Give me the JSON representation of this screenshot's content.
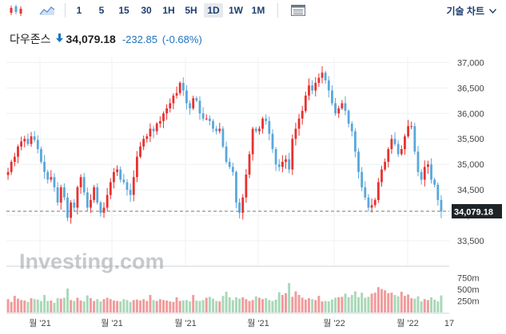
{
  "toolbar": {
    "candle_icon": "candlestick-icon",
    "area_icon": "area-chart-icon",
    "timeframes": [
      "1",
      "5",
      "15",
      "30",
      "1H",
      "5H",
      "1D",
      "1W",
      "1M"
    ],
    "active": "1D",
    "table_icon": "table-icon",
    "technical_label": "기술 차트",
    "technical_icon": "chevron-down-icon"
  },
  "header": {
    "name": "다우존스",
    "price": "34,079.18",
    "change": "-232.85",
    "change_pct": "(-0.68%)"
  },
  "colors": {
    "up": "#e8312f",
    "down": "#5aa7dc",
    "vol_up": "#f19b9b",
    "vol_down": "#a9d8b8",
    "accent": "#1e73be"
  },
  "chart_data": {
    "type": "candlestick",
    "y_ticks": [
      "37,000",
      "36,500",
      "36,000",
      "35,500",
      "35,000",
      "34,500",
      "34,000",
      "33,500"
    ],
    "ylim": [
      33000,
      37100
    ],
    "last_price": 34079.18,
    "last_price_label": "34,079.18",
    "x_labels": [
      "월 '21",
      "월 '21",
      "월 '21",
      "월 '21",
      "월 '22",
      "월 '22",
      "17"
    ],
    "volume_ticks": [
      "750m",
      "500m",
      "250m"
    ],
    "watermark": "Investing.com",
    "closes": [
      34850,
      35050,
      35150,
      35350,
      35450,
      35500,
      35400,
      35550,
      35480,
      35300,
      35050,
      34850,
      34700,
      34750,
      34550,
      34250,
      34550,
      34350,
      33950,
      34250,
      34150,
      34550,
      34750,
      34450,
      34150,
      34300,
      34550,
      34250,
      34050,
      34150,
      34400,
      34650,
      34850,
      34900,
      34700,
      34650,
      34500,
      34400,
      34750,
      35150,
      35350,
      35500,
      35550,
      35700,
      35650,
      35800,
      35850,
      36000,
      36100,
      36200,
      36350,
      36400,
      36600,
      36450,
      36200,
      36100,
      36300,
      36250,
      36000,
      35900,
      35900,
      35850,
      35700,
      35650,
      35700,
      35350,
      35050,
      34950,
      34850,
      34250,
      34050,
      34350,
      34800,
      35200,
      35700,
      35650,
      35700,
      35900,
      35850,
      35600,
      35300,
      35000,
      34950,
      35050,
      35100,
      34900,
      35500,
      35700,
      35900,
      36050,
      36350,
      36550,
      36450,
      36600,
      36700,
      36800,
      36650,
      36450,
      36200,
      36000,
      36100,
      36200,
      36050,
      35800,
      35650,
      35250,
      34850,
      34550,
      34350,
      34150,
      34200,
      34300,
      34650,
      34900,
      35050,
      35300,
      35500,
      35400,
      35200,
      35300,
      35550,
      35750,
      35750,
      35250,
      34850,
      34700,
      34950,
      35000,
      34700,
      34600,
      34300,
      34079.18
    ],
    "volumes": [
      290,
      230,
      360,
      300,
      270,
      260,
      230,
      310,
      290,
      280,
      250,
      380,
      250,
      260,
      210,
      310,
      300,
      320,
      520,
      270,
      250,
      320,
      260,
      240,
      370,
      310,
      250,
      290,
      240,
      290,
      320,
      290,
      260,
      250,
      240,
      290,
      270,
      230,
      270,
      280,
      260,
      290,
      250,
      380,
      270,
      250,
      290,
      270,
      260,
      240,
      230,
      330,
      250,
      260,
      270,
      240,
      380,
      260,
      250,
      270,
      320,
      340,
      300,
      250,
      240,
      360,
      450,
      330,
      270,
      330,
      300,
      330,
      290,
      250,
      270,
      350,
      320,
      290,
      310,
      270,
      250,
      280,
      440,
      380,
      420,
      640,
      340,
      460,
      380,
      320,
      280,
      310,
      290,
      270,
      360,
      240,
      250,
      240,
      280,
      320,
      330,
      340,
      410,
      330,
      380,
      460,
      330,
      430,
      320,
      340,
      410,
      430,
      550,
      510,
      480,
      420,
      430,
      380,
      350,
      450,
      360,
      390,
      310,
      300,
      350,
      240,
      290,
      270,
      330,
      280,
      240,
      370
    ]
  }
}
